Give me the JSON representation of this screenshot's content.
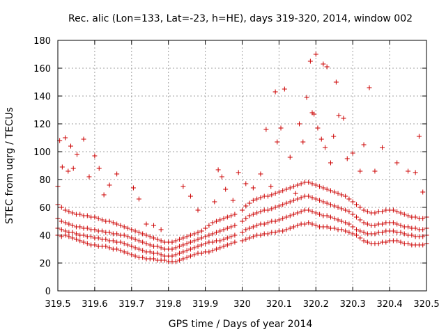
{
  "chart_data": {
    "type": "scatter",
    "title": "Rec. alic (Lon=133, Lat=-23, h=HE), days 319-320, 2014, window 002",
    "xlabel": "GPS time / Days of year 2014",
    "ylabel": "STEC from uqrg / TECUs",
    "xlim": [
      319.5,
      320.5
    ],
    "ylim": [
      0,
      180
    ],
    "x_ticks": [
      "319.5",
      "319.6",
      "319.7",
      "319.8",
      "319.9",
      "320",
      "320.1",
      "320.2",
      "320.3",
      "320.4",
      "320.5"
    ],
    "y_ticks": [
      "0",
      "20",
      "40",
      "60",
      "80",
      "100",
      "120",
      "140",
      "160",
      "180"
    ],
    "grid": true,
    "marker": "plus",
    "color": "#cc0000",
    "series": [
      {
        "x": [
          319.5,
          319.51,
          319.52,
          319.53,
          319.54,
          319.55,
          319.56,
          319.57,
          319.58,
          319.59,
          319.6,
          319.61,
          319.62,
          319.63,
          319.64,
          319.65,
          319.66,
          319.67,
          319.68,
          319.69,
          319.7,
          319.71,
          319.72,
          319.73,
          319.74,
          319.75,
          319.76,
          319.77,
          319.78,
          319.79,
          319.8,
          319.81,
          319.82,
          319.83,
          319.84,
          319.85,
          319.86,
          319.87,
          319.88,
          319.89,
          319.9,
          319.91,
          319.92,
          319.93,
          319.94,
          319.95,
          319.96,
          319.97,
          319.98,
          320.0,
          320.01,
          320.02,
          320.03,
          320.04,
          320.05,
          320.06,
          320.07,
          320.08,
          320.09,
          320.1,
          320.11,
          320.12,
          320.13,
          320.14,
          320.15,
          320.16,
          320.17,
          320.18,
          320.19,
          320.2,
          320.21,
          320.22,
          320.23,
          320.24,
          320.25,
          320.26,
          320.27,
          320.28,
          320.29,
          320.3,
          320.31,
          320.32,
          320.33,
          320.34,
          320.35,
          320.36,
          320.37,
          320.38,
          320.39,
          320.4,
          320.41,
          320.42,
          320.43,
          320.44,
          320.45,
          320.46,
          320.47,
          320.48,
          320.49,
          320.5
        ],
        "y": [
          40,
          39,
          40,
          39,
          38,
          37,
          36,
          35,
          34,
          33,
          33,
          32,
          32,
          32,
          31,
          30,
          30,
          29,
          28,
          27,
          26,
          25,
          24,
          24,
          23,
          23,
          23,
          22,
          22,
          22,
          21,
          21,
          21,
          22,
          23,
          24,
          25,
          26,
          27,
          27,
          28,
          28,
          29,
          30,
          31,
          32,
          33,
          34,
          35,
          36,
          37,
          38,
          39,
          40,
          40,
          41,
          41,
          42,
          42,
          43,
          43,
          44,
          45,
          46,
          47,
          48,
          48,
          49,
          48,
          47,
          46,
          46,
          46,
          45,
          45,
          44,
          44,
          43,
          42,
          41,
          40,
          38,
          36,
          35,
          34,
          34,
          34,
          35,
          35,
          36,
          36,
          36,
          35,
          34,
          34,
          33,
          33,
          33,
          33,
          34
        ],
        "name": ""
      },
      {
        "x": [
          319.5,
          319.51,
          319.52,
          319.53,
          319.54,
          319.55,
          319.56,
          319.57,
          319.58,
          319.59,
          319.6,
          319.61,
          319.62,
          319.63,
          319.64,
          319.65,
          319.66,
          319.67,
          319.68,
          319.69,
          319.7,
          319.71,
          319.72,
          319.73,
          319.74,
          319.75,
          319.76,
          319.77,
          319.78,
          319.79,
          319.8,
          319.81,
          319.82,
          319.83,
          319.84,
          319.85,
          319.86,
          319.87,
          319.88,
          319.89,
          319.9,
          319.91,
          319.92,
          319.93,
          319.94,
          319.95,
          319.96,
          319.97,
          319.98,
          320.0,
          320.01,
          320.02,
          320.03,
          320.04,
          320.05,
          320.06,
          320.07,
          320.08,
          320.09,
          320.1,
          320.11,
          320.12,
          320.13,
          320.14,
          320.15,
          320.16,
          320.17,
          320.18,
          320.19,
          320.2,
          320.21,
          320.22,
          320.23,
          320.24,
          320.25,
          320.26,
          320.27,
          320.28,
          320.29,
          320.3,
          320.31,
          320.32,
          320.33,
          320.34,
          320.35,
          320.36,
          320.37,
          320.38,
          320.39,
          320.4,
          320.41,
          320.42,
          320.43,
          320.44,
          320.45,
          320.46,
          320.47,
          320.48,
          320.49,
          320.5
        ],
        "y": [
          45,
          44,
          43,
          42,
          42,
          41,
          40,
          40,
          39,
          39,
          38,
          38,
          37,
          37,
          36,
          36,
          35,
          35,
          34,
          33,
          32,
          31,
          30,
          29,
          28,
          28,
          27,
          27,
          26,
          25,
          25,
          25,
          26,
          27,
          28,
          29,
          30,
          31,
          32,
          33,
          34,
          35,
          35,
          36,
          36,
          37,
          38,
          39,
          40,
          42,
          44,
          45,
          46,
          47,
          48,
          48,
          49,
          50,
          50,
          51,
          52,
          53,
          54,
          55,
          56,
          57,
          58,
          58,
          57,
          56,
          55,
          54,
          54,
          53,
          52,
          51,
          50,
          49,
          48,
          46,
          44,
          43,
          42,
          41,
          41,
          41,
          42,
          42,
          43,
          43,
          43,
          42,
          42,
          41,
          40,
          40,
          39,
          39,
          39,
          40
        ],
        "name": ""
      },
      {
        "x": [
          319.5,
          319.51,
          319.52,
          319.53,
          319.54,
          319.55,
          319.56,
          319.57,
          319.58,
          319.59,
          319.6,
          319.61,
          319.62,
          319.63,
          319.64,
          319.65,
          319.66,
          319.67,
          319.68,
          319.69,
          319.7,
          319.71,
          319.72,
          319.73,
          319.74,
          319.75,
          319.76,
          319.77,
          319.78,
          319.79,
          319.8,
          319.81,
          319.82,
          319.83,
          319.84,
          319.85,
          319.86,
          319.87,
          319.88,
          319.89,
          319.9,
          319.91,
          319.92,
          319.93,
          319.94,
          319.95,
          319.96,
          319.97,
          319.98,
          320.0,
          320.01,
          320.02,
          320.03,
          320.04,
          320.05,
          320.06,
          320.07,
          320.08,
          320.09,
          320.1,
          320.11,
          320.12,
          320.13,
          320.14,
          320.15,
          320.16,
          320.17,
          320.18,
          320.19,
          320.2,
          320.21,
          320.22,
          320.23,
          320.24,
          320.25,
          320.26,
          320.27,
          320.28,
          320.29,
          320.3,
          320.31,
          320.32,
          320.33,
          320.34,
          320.35,
          320.36,
          320.37,
          320.38,
          320.39,
          320.4,
          320.41,
          320.42,
          320.43,
          320.44,
          320.45,
          320.46,
          320.47,
          320.48,
          320.49,
          320.5
        ],
        "y": [
          52,
          50,
          49,
          48,
          47,
          46,
          46,
          45,
          45,
          44,
          44,
          43,
          43,
          42,
          42,
          41,
          41,
          40,
          40,
          39,
          38,
          37,
          36,
          35,
          34,
          33,
          32,
          32,
          31,
          30,
          30,
          30,
          31,
          32,
          33,
          34,
          35,
          36,
          37,
          38,
          39,
          40,
          41,
          42,
          43,
          44,
          45,
          46,
          47,
          50,
          52,
          54,
          55,
          56,
          57,
          58,
          58,
          59,
          60,
          61,
          62,
          63,
          64,
          65,
          66,
          67,
          68,
          68,
          67,
          66,
          65,
          64,
          63,
          62,
          61,
          60,
          59,
          58,
          57,
          55,
          53,
          51,
          49,
          48,
          47,
          47,
          48,
          48,
          49,
          49,
          49,
          48,
          47,
          46,
          46,
          45,
          45,
          44,
          44,
          45
        ],
        "name": ""
      },
      {
        "x": [
          319.5,
          319.51,
          319.52,
          319.53,
          319.54,
          319.55,
          319.56,
          319.57,
          319.58,
          319.59,
          319.6,
          319.61,
          319.62,
          319.63,
          319.64,
          319.65,
          319.66,
          319.67,
          319.68,
          319.69,
          319.7,
          319.71,
          319.72,
          319.73,
          319.74,
          319.75,
          319.76,
          319.77,
          319.78,
          319.79,
          319.8,
          319.81,
          319.82,
          319.83,
          319.84,
          319.85,
          319.86,
          319.87,
          319.88,
          319.89,
          319.9,
          319.91,
          319.92,
          319.93,
          319.94,
          319.95,
          319.96,
          319.97,
          319.98,
          320.0,
          320.01,
          320.02,
          320.03,
          320.04,
          320.05,
          320.06,
          320.07,
          320.08,
          320.09,
          320.1,
          320.11,
          320.12,
          320.13,
          320.14,
          320.15,
          320.16,
          320.17,
          320.18,
          320.19,
          320.2,
          320.21,
          320.22,
          320.23,
          320.24,
          320.25,
          320.26,
          320.27,
          320.28,
          320.29,
          320.3,
          320.31,
          320.32,
          320.33,
          320.34,
          320.35,
          320.36,
          320.37,
          320.38,
          320.39,
          320.4,
          320.41,
          320.42,
          320.43,
          320.44,
          320.45,
          320.46,
          320.47,
          320.48,
          320.49,
          320.5
        ],
        "y": [
          62,
          60,
          58,
          57,
          56,
          55,
          55,
          54,
          54,
          53,
          53,
          52,
          51,
          50,
          50,
          49,
          48,
          47,
          46,
          45,
          44,
          43,
          42,
          41,
          40,
          39,
          38,
          37,
          36,
          35,
          35,
          35,
          36,
          37,
          38,
          39,
          40,
          41,
          42,
          43,
          45,
          47,
          49,
          50,
          51,
          52,
          53,
          54,
          55,
          58,
          61,
          63,
          65,
          66,
          67,
          68,
          68,
          69,
          70,
          71,
          72,
          73,
          74,
          75,
          76,
          77,
          78,
          78,
          77,
          76,
          75,
          74,
          73,
          72,
          71,
          70,
          69,
          68,
          66,
          64,
          62,
          60,
          58,
          57,
          56,
          56,
          57,
          57,
          58,
          58,
          58,
          57,
          56,
          55,
          54,
          53,
          53,
          52,
          52,
          53
        ],
        "name": ""
      },
      {
        "x": [
          319.5,
          319.505,
          319.512,
          319.52,
          319.528,
          319.535,
          319.542,
          319.552,
          319.57,
          319.585,
          319.6,
          319.612,
          319.625,
          319.64,
          319.66,
          319.705,
          319.72,
          319.74,
          319.76,
          319.78,
          319.84,
          319.86,
          319.88,
          319.925,
          319.935,
          319.945,
          319.955,
          319.975,
          319.99,
          320.01,
          320.03,
          320.05,
          320.065,
          320.078,
          320.09,
          320.095,
          320.105,
          320.115,
          320.13,
          320.145,
          320.155,
          320.165,
          320.175,
          320.185,
          320.19,
          320.195,
          320.2,
          320.205,
          320.215,
          320.22,
          320.225,
          320.23,
          320.24,
          320.248,
          320.255,
          320.262,
          320.275,
          320.285,
          320.3,
          320.32,
          320.33,
          320.345,
          320.36,
          320.38,
          320.42,
          320.45,
          320.47,
          320.48,
          320.49
        ],
        "y": [
          75,
          108,
          89,
          110,
          86,
          104,
          88,
          98,
          109,
          82,
          97,
          88,
          69,
          76,
          84,
          74,
          66,
          48,
          47,
          44,
          75,
          68,
          58,
          64,
          87,
          82,
          73,
          65,
          85,
          77,
          74,
          84,
          116,
          75,
          143,
          107,
          117,
          145,
          96,
          70,
          120,
          107,
          139,
          165,
          128,
          127,
          170,
          117,
          109,
          163,
          103,
          161,
          92,
          111,
          150,
          126,
          124,
          95,
          99,
          86,
          105,
          146,
          86,
          103,
          92,
          86,
          85,
          111,
          71
        ],
        "name": ""
      }
    ]
  }
}
